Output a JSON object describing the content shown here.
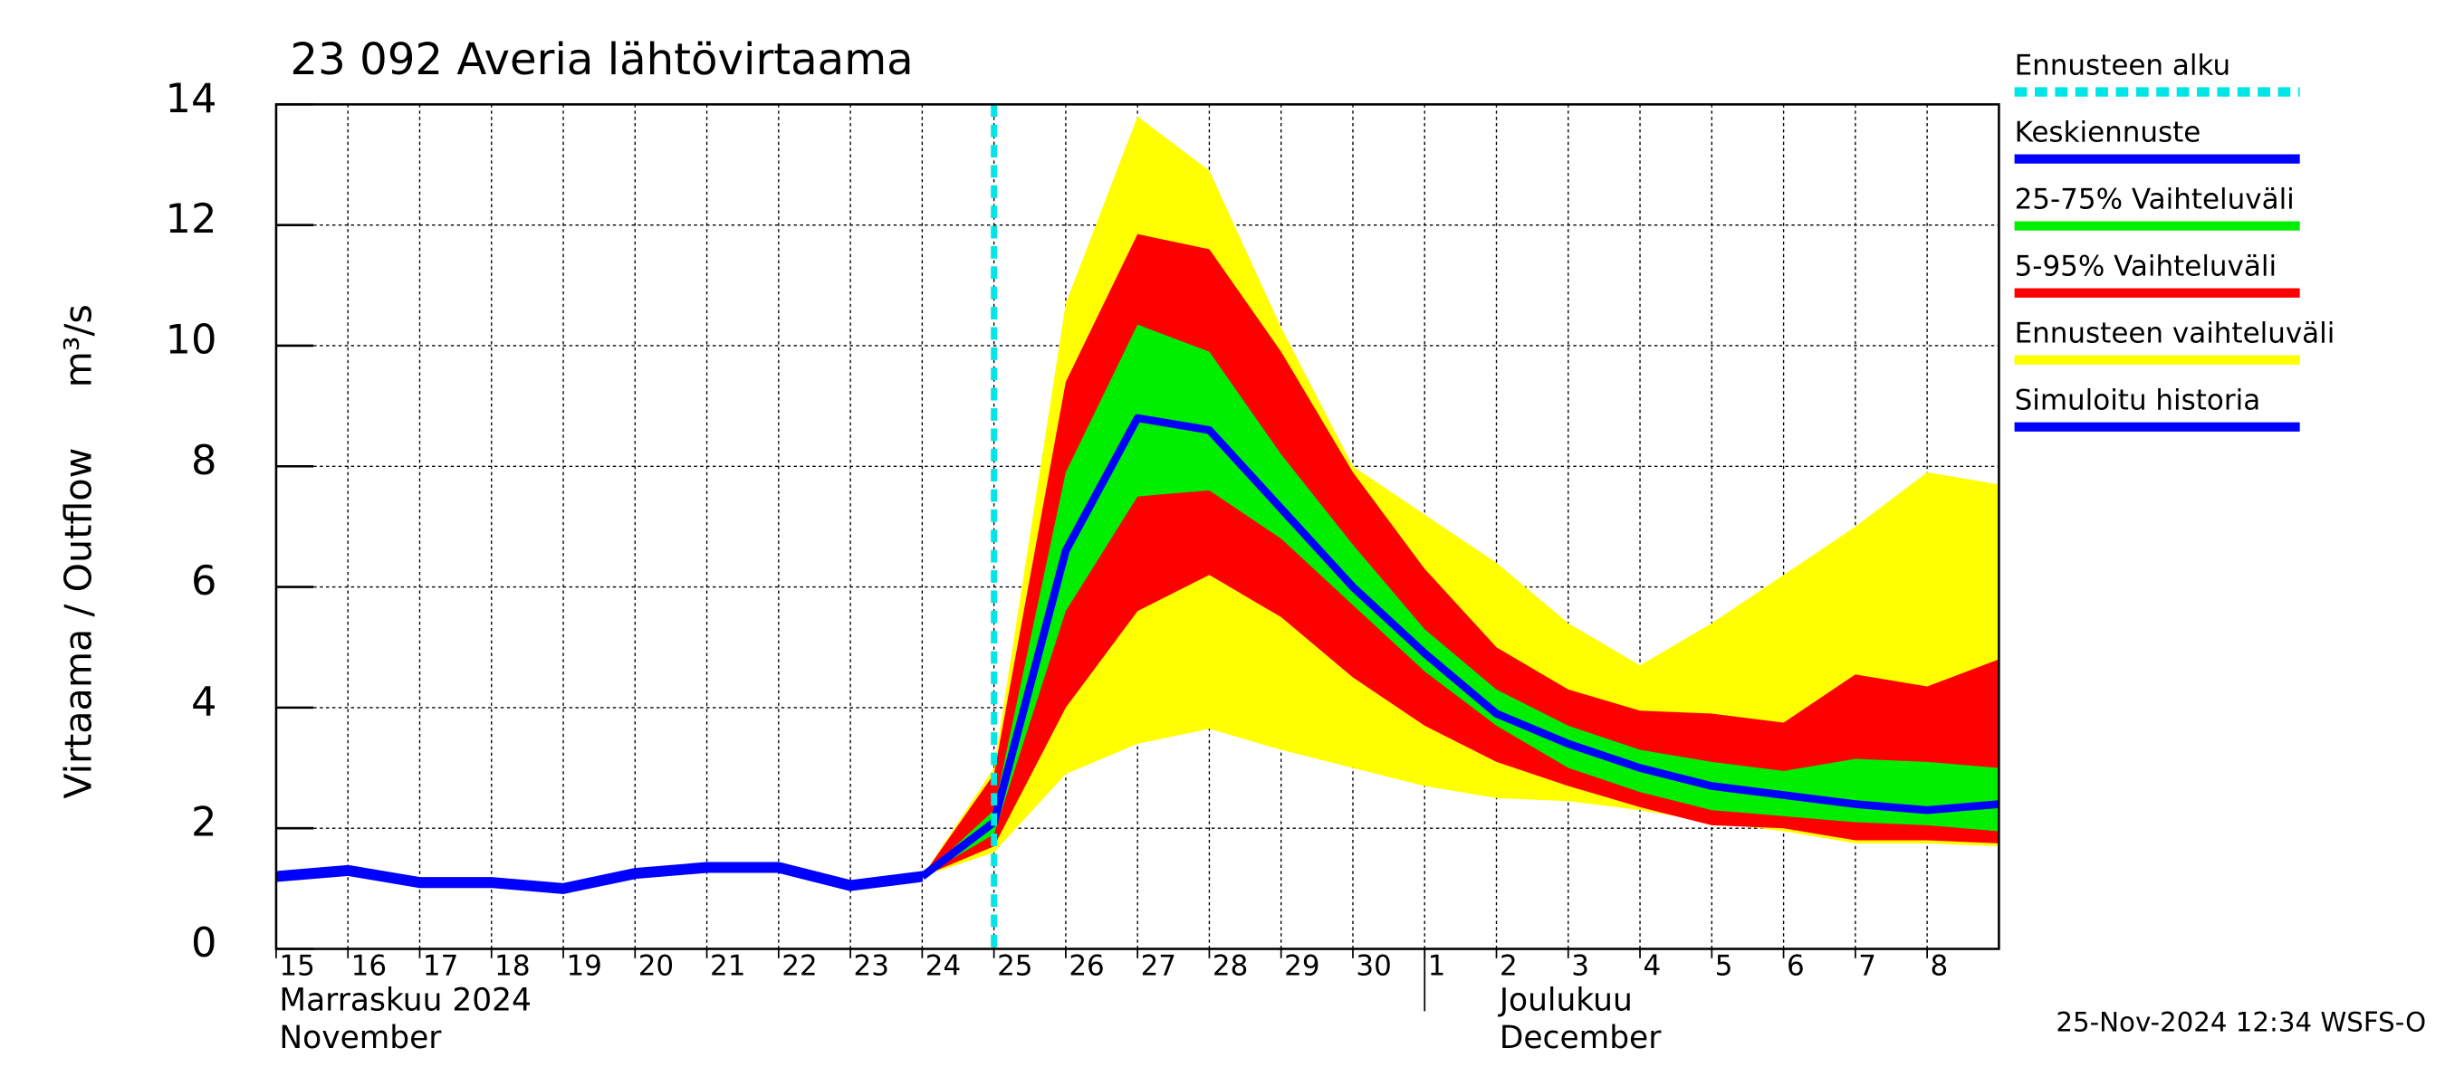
{
  "chart_data": {
    "type": "forecast",
    "title": "23 092 Averia lähtövirtaama",
    "y_label": "Virtaama / Outflow",
    "y_unit": "m³/s",
    "x": [
      "2024-11-15",
      "2024-11-16",
      "2024-11-17",
      "2024-11-18",
      "2024-11-19",
      "2024-11-20",
      "2024-11-21",
      "2024-11-22",
      "2024-11-23",
      "2024-11-24",
      "2024-11-25",
      "2024-11-26",
      "2024-11-27",
      "2024-11-28",
      "2024-11-29",
      "2024-11-30",
      "2024-12-01",
      "2024-12-02",
      "2024-12-03",
      "2024-12-04",
      "2024-12-05",
      "2024-12-06",
      "2024-12-07",
      "2024-12-08",
      "2024-12-09"
    ],
    "xlim": [
      "2024-11-15",
      "2024-12-09"
    ],
    "xticks": [
      {
        "value": "2024-11-15",
        "label": "15"
      },
      {
        "value": "2024-11-16",
        "label": "16"
      },
      {
        "value": "2024-11-17",
        "label": "17"
      },
      {
        "value": "2024-11-18",
        "label": "18"
      },
      {
        "value": "2024-11-19",
        "label": "19"
      },
      {
        "value": "2024-11-20",
        "label": "20"
      },
      {
        "value": "2024-11-21",
        "label": "21"
      },
      {
        "value": "2024-11-22",
        "label": "22"
      },
      {
        "value": "2024-11-23",
        "label": "23"
      },
      {
        "value": "2024-11-24",
        "label": "24"
      },
      {
        "value": "2024-11-25",
        "label": "25"
      },
      {
        "value": "2024-11-26",
        "label": "26"
      },
      {
        "value": "2024-11-27",
        "label": "27"
      },
      {
        "value": "2024-11-28",
        "label": "28"
      },
      {
        "value": "2024-11-29",
        "label": "29"
      },
      {
        "value": "2024-11-30",
        "label": "30"
      },
      {
        "value": "2024-12-01",
        "label": "1"
      },
      {
        "value": "2024-12-02",
        "label": "2"
      },
      {
        "value": "2024-12-03",
        "label": "3"
      },
      {
        "value": "2024-12-04",
        "label": "4"
      },
      {
        "value": "2024-12-05",
        "label": "5"
      },
      {
        "value": "2024-12-06",
        "label": "6"
      },
      {
        "value": "2024-12-07",
        "label": "7"
      },
      {
        "value": "2024-12-08",
        "label": "8"
      }
    ],
    "months": [
      {
        "value": "2024-11-15",
        "label": "Marraskuu 2024",
        "label_en": "November"
      },
      {
        "value": "2024-12-01",
        "label": "Joulukuu",
        "label_en": "December"
      }
    ],
    "ylim": [
      0,
      14
    ],
    "yticks": [
      0,
      2,
      4,
      6,
      8,
      10,
      12,
      14
    ],
    "grid": true,
    "forecast_start": {
      "name": "Ennusteen alku",
      "color": "#00e5e5",
      "x": "2024-11-25"
    },
    "series": [
      {
        "name": "Keskiennuste",
        "color": "#0000ff",
        "values": [
          null,
          null,
          null,
          null,
          null,
          null,
          null,
          null,
          null,
          1.2,
          2.1,
          6.6,
          8.8,
          8.6,
          7.3,
          6.0,
          4.9,
          3.9,
          3.4,
          3.0,
          2.7,
          2.55,
          2.4,
          2.3,
          2.4
        ]
      },
      {
        "name": "25-75% Vaihteluväli",
        "color": "#00ee00",
        "low": [
          null,
          null,
          null,
          null,
          null,
          null,
          null,
          null,
          null,
          1.2,
          1.9,
          5.6,
          7.5,
          7.6,
          6.8,
          5.7,
          4.6,
          3.7,
          3.0,
          2.6,
          2.3,
          2.2,
          2.1,
          2.05,
          1.95
        ],
        "high": [
          null,
          null,
          null,
          null,
          null,
          null,
          null,
          null,
          null,
          1.2,
          2.3,
          7.9,
          10.35,
          9.9,
          8.2,
          6.7,
          5.3,
          4.3,
          3.7,
          3.3,
          3.1,
          2.95,
          3.15,
          3.1,
          3.0
        ]
      },
      {
        "name": "5-95% Vaihteluväli",
        "color": "#ff0000",
        "low": [
          null,
          null,
          null,
          null,
          null,
          null,
          null,
          null,
          null,
          1.2,
          1.7,
          4.0,
          5.6,
          6.2,
          5.5,
          4.5,
          3.7,
          3.1,
          2.7,
          2.35,
          2.05,
          2.0,
          1.8,
          1.8,
          1.75
        ],
        "high": [
          null,
          null,
          null,
          null,
          null,
          null,
          null,
          null,
          null,
          1.2,
          2.9,
          9.4,
          11.85,
          11.6,
          9.9,
          7.9,
          6.3,
          5.0,
          4.3,
          3.95,
          3.9,
          3.75,
          4.55,
          4.35,
          4.8
        ]
      },
      {
        "name": "Ennusteen vaihteluväli",
        "color": "#ffff00",
        "low": [
          null,
          null,
          null,
          null,
          null,
          null,
          null,
          null,
          null,
          1.2,
          1.6,
          2.9,
          3.4,
          3.65,
          3.3,
          3.0,
          2.7,
          2.5,
          2.45,
          2.3,
          2.1,
          1.95,
          1.75,
          1.75,
          1.7
        ],
        "high": [
          null,
          null,
          null,
          null,
          null,
          null,
          null,
          null,
          null,
          1.2,
          3.0,
          10.7,
          13.8,
          12.9,
          10.3,
          8.0,
          7.2,
          6.4,
          5.4,
          4.7,
          5.4,
          6.2,
          7.0,
          7.9,
          7.7
        ]
      },
      {
        "name": "Simuloitu historia",
        "color": "#0000ff",
        "values": [
          1.2,
          1.3,
          1.1,
          1.1,
          1.0,
          1.25,
          1.35,
          1.35,
          1.05,
          1.2,
          null,
          null,
          null,
          null,
          null,
          null,
          null,
          null,
          null,
          null,
          null,
          null,
          null,
          null,
          null
        ]
      }
    ],
    "footer": "25-Nov-2024 12:34 WSFS-O"
  }
}
